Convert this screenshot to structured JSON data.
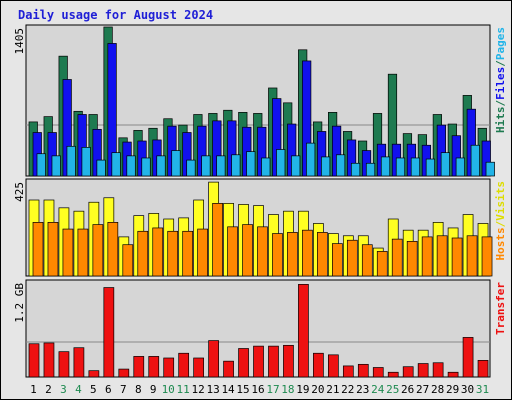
{
  "title": "Daily usage for August 2024",
  "colors": {
    "hits": "#1e7a50",
    "files": "#1111ee",
    "pages": "#22b4e8",
    "visits": "#ffff22",
    "hosts": "#ff8800",
    "transfer": "#ee1111",
    "weekend": "#1e8a50",
    "weekday": "#000000"
  },
  "chart_data": {
    "type": "bar",
    "days": [
      "1",
      "2",
      "3",
      "4",
      "5",
      "6",
      "7",
      "8",
      "9",
      "10",
      "11",
      "12",
      "13",
      "14",
      "15",
      "16",
      "17",
      "18",
      "19",
      "20",
      "21",
      "22",
      "23",
      "24",
      "25",
      "26",
      "27",
      "28",
      "29",
      "30",
      "31"
    ],
    "weekend_days": [
      "3",
      "4",
      "10",
      "11",
      "17",
      "18",
      "24",
      "25",
      "31"
    ],
    "panels": [
      {
        "name": "hits-files-pages",
        "max_label": "1405",
        "max": 1405,
        "side_labels": [
          {
            "text": "Hits",
            "color": "#1e7a50"
          },
          {
            "text": "/",
            "color": "#1e7a50"
          },
          {
            "text": "Files",
            "color": "#1111ee"
          },
          {
            "text": "/",
            "color": "#1e7a50"
          },
          {
            "text": "Pages",
            "color": "#22b4e8"
          }
        ],
        "series": [
          {
            "name": "Hits",
            "color": "#1e7a50",
            "values": [
              510,
              560,
              1130,
              610,
              580,
              1405,
              360,
              430,
              450,
              540,
              480,
              580,
              590,
              620,
              600,
              590,
              830,
              690,
              1190,
              510,
              600,
              420,
              330,
              590,
              960,
              400,
              390,
              580,
              490,
              760,
              450
            ]
          },
          {
            "name": "Files",
            "color": "#1111ee",
            "values": [
              410,
              410,
              910,
              580,
              440,
              1250,
              320,
              330,
              340,
              470,
              410,
              470,
              520,
              520,
              460,
              460,
              730,
              490,
              1085,
              420,
              470,
              340,
              240,
              300,
              300,
              300,
              290,
              480,
              380,
              630,
              330
            ]
          },
          {
            "name": "Pages",
            "color": "#22b4e8",
            "values": [
              210,
              190,
              280,
              270,
              150,
              220,
              190,
              170,
              190,
              240,
              150,
              190,
              190,
              200,
              230,
              170,
              250,
              190,
              310,
              180,
              200,
              120,
              120,
              180,
              170,
              170,
              160,
              220,
              170,
              290,
              130
            ]
          }
        ]
      },
      {
        "name": "visits-hosts",
        "max_label": "425",
        "max": 425,
        "side_labels": [
          {
            "text": "Hosts",
            "color": "#ff8800"
          },
          {
            "text": "/",
            "color": "#dddd00"
          },
          {
            "text": "Visits",
            "color": "#dddd00"
          }
        ],
        "series": [
          {
            "name": "Visits",
            "color": "#ffff22",
            "values": [
              340,
              340,
              305,
              290,
              330,
              350,
              175,
              270,
              280,
              255,
              260,
              340,
              420,
              325,
              320,
              315,
              275,
              290,
              290,
              235,
              190,
              180,
              180,
              125,
              255,
              205,
              205,
              240,
              215,
              275,
              235
            ]
          },
          {
            "name": "Hosts",
            "color": "#ff8800",
            "values": [
              240,
              240,
              210,
              210,
              230,
              240,
              140,
              200,
              215,
              200,
              200,
              210,
              325,
              220,
              230,
              220,
              190,
              195,
              205,
              195,
              145,
              160,
              140,
              110,
              165,
              155,
              175,
              180,
              170,
              180,
              175
            ]
          }
        ]
      },
      {
        "name": "transfer",
        "max_label": "1.2 GB",
        "max": 1.2,
        "side_labels": [
          {
            "text": "Transfer",
            "color": "#ee1111"
          }
        ],
        "series": [
          {
            "name": "Transfer",
            "color": "#ee1111",
            "values": [
              0.42,
              0.43,
              0.32,
              0.37,
              0.08,
              1.13,
              0.1,
              0.26,
              0.26,
              0.24,
              0.3,
              0.24,
              0.46,
              0.2,
              0.36,
              0.39,
              0.39,
              0.4,
              1.17,
              0.3,
              0.28,
              0.14,
              0.16,
              0.12,
              0.06,
              0.13,
              0.17,
              0.18,
              0.06,
              0.5,
              0.21
            ]
          }
        ]
      }
    ]
  }
}
